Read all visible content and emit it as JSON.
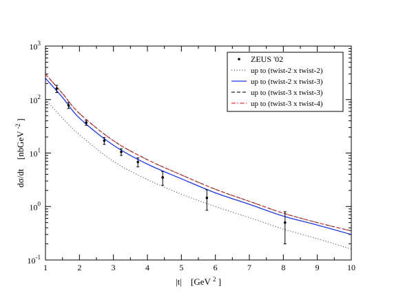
{
  "chart_data": {
    "type": "line",
    "xlabel_parts": {
      "abs": "|t|",
      "unit_base": "[GeV",
      "unit_exp": "2",
      "unit_close": "]"
    },
    "ylabel_parts": {
      "lhs": "dσ/dt",
      "unit_base": "[nbGeV",
      "unit_exp": "-2",
      "unit_close": "]"
    },
    "xlim": [
      1,
      10
    ],
    "ylim": [
      0.1,
      1000
    ],
    "yscale": "log",
    "x_ticks": [
      "1",
      "2",
      "3",
      "4",
      "5",
      "6",
      "7",
      "8",
      "9",
      "10"
    ],
    "y_ticks": [
      {
        "base": "10",
        "exp": "-1"
      },
      {
        "base": "10",
        "exp": "0"
      },
      {
        "base": "10",
        "exp": "1"
      },
      {
        "base": "10",
        "exp": "2"
      },
      {
        "base": "10",
        "exp": "3"
      }
    ],
    "legend_position": "top-right",
    "legend": {
      "points_label": "ZEUS  '02",
      "series_labels": [
        "up to (twist-2 x twist-2)",
        "up to (twist-2 x twist-3)",
        "up to (twist-3 x twist-3)",
        "up to (twist-3 x twist-4)"
      ]
    },
    "series": [
      {
        "name": "up to (twist-2 x twist-2)",
        "style": "dotted",
        "color": "#555555",
        "x": [
          1.0,
          1.5,
          2.0,
          3.0,
          4.0,
          5.0,
          6.0,
          7.0,
          8.0,
          9.0,
          10.0
        ],
        "y": [
          100,
          45,
          22,
          7.0,
          3.2,
          1.7,
          1.0,
          0.62,
          0.38,
          0.25,
          0.16
        ]
      },
      {
        "name": "up to (twist-2 x twist-3)",
        "style": "solid",
        "color": "#1a35e0",
        "x": [
          1.0,
          1.5,
          2.0,
          3.0,
          4.0,
          5.0,
          6.0,
          7.0,
          8.0,
          9.0,
          10.0
        ],
        "y": [
          250,
          110,
          45,
          14,
          6.2,
          3.3,
          1.8,
          1.1,
          0.66,
          0.45,
          0.3
        ]
      },
      {
        "name": "up to (twist-3 x twist-3)",
        "style": "dashed",
        "color": "#222222",
        "x": [
          1.0,
          1.5,
          2.0,
          3.0,
          4.0,
          5.0,
          6.0,
          7.0,
          8.0,
          9.0,
          10.0
        ],
        "y": [
          300,
          130,
          55,
          17,
          7.5,
          3.9,
          2.1,
          1.25,
          0.75,
          0.5,
          0.35
        ]
      },
      {
        "name": "up to (twist-3 x twist-4)",
        "style": "dashdot",
        "color": "#e03030",
        "x": [
          1.0,
          1.5,
          2.0,
          3.0,
          4.0,
          5.0,
          6.0,
          7.0,
          8.0,
          9.0,
          10.0
        ],
        "y": [
          300,
          130,
          55,
          17,
          7.5,
          3.9,
          2.1,
          1.25,
          0.75,
          0.5,
          0.35
        ]
      }
    ],
    "points": {
      "name": "ZEUS  '02",
      "x": [
        1.33,
        1.68,
        2.2,
        2.73,
        3.23,
        3.72,
        4.45,
        5.75,
        8.05
      ],
      "y": [
        160,
        78,
        37,
        17,
        10.5,
        6.8,
        3.5,
        1.45,
        0.5
      ],
      "err_low": [
        25,
        10,
        4,
        2.5,
        1.5,
        1.3,
        1.0,
        0.6,
        0.3
      ],
      "err_high": [
        25,
        10,
        4,
        2.5,
        1.5,
        1.3,
        1.0,
        0.6,
        0.3
      ]
    }
  }
}
